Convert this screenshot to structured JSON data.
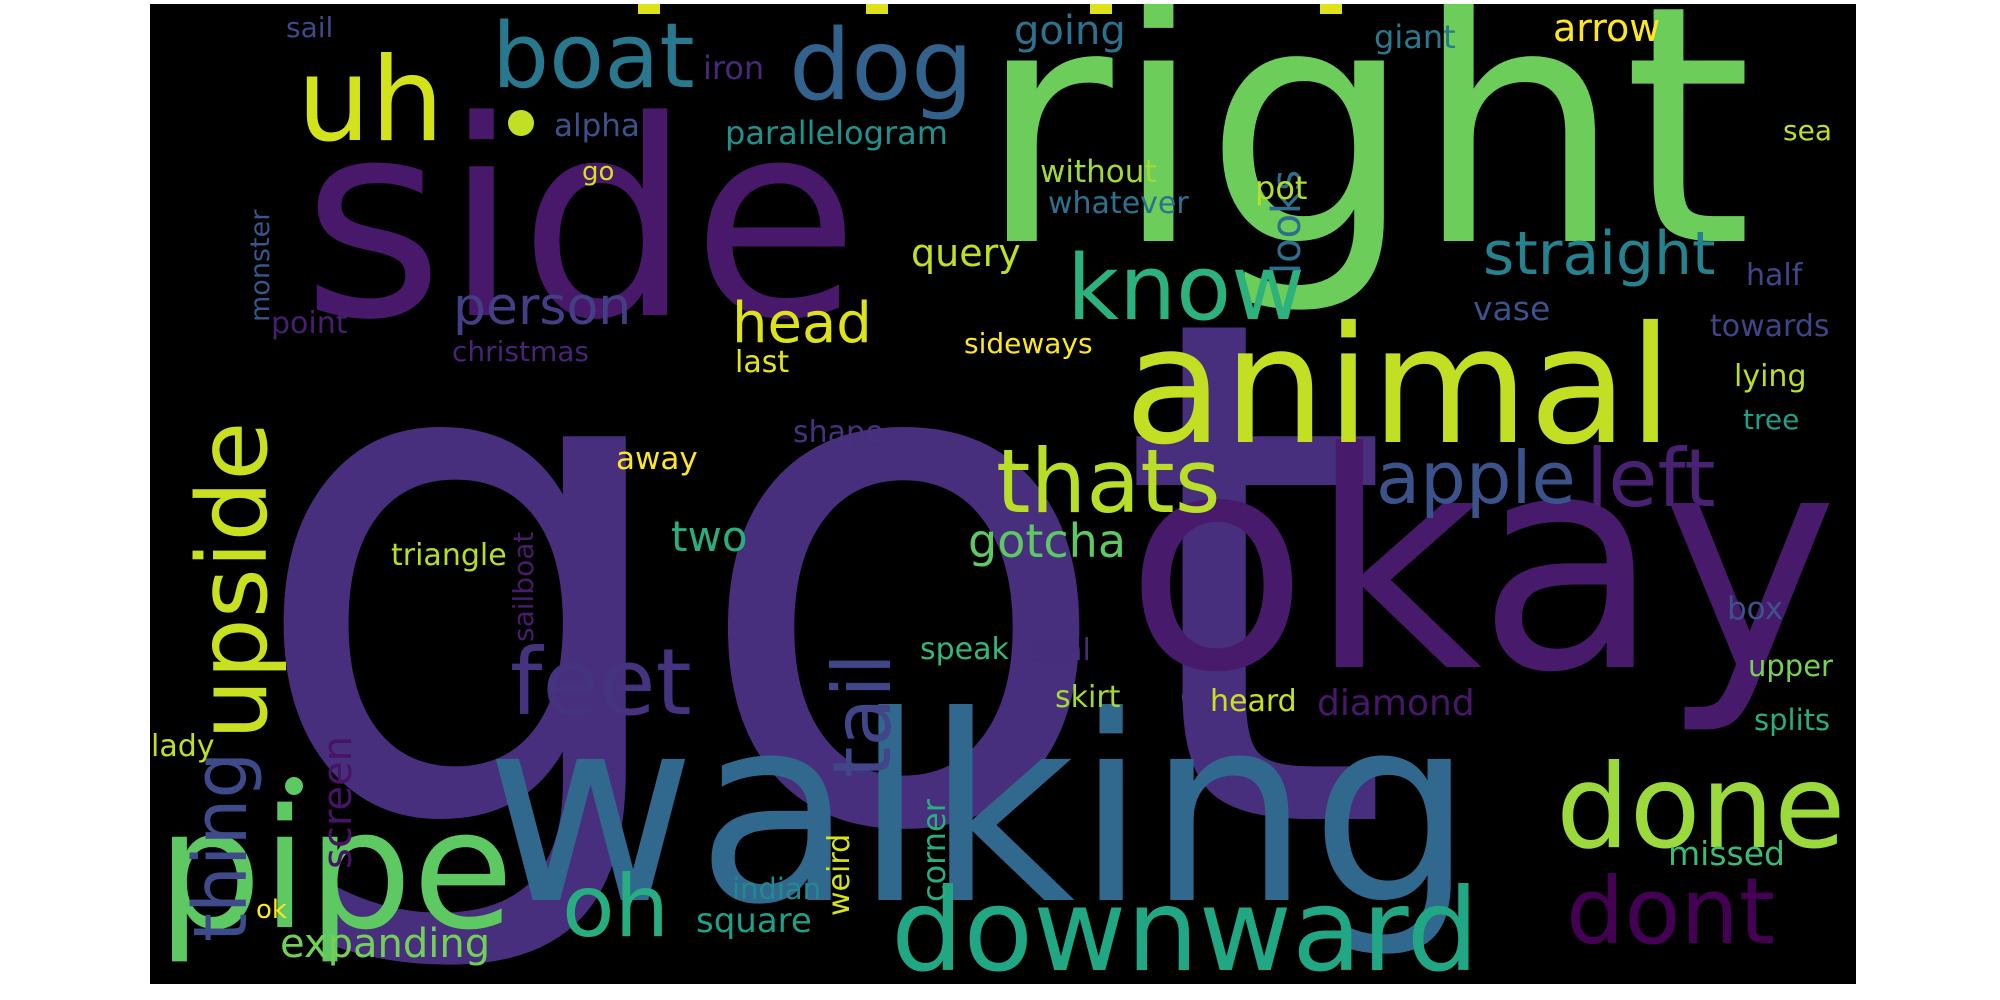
{
  "colors": {
    "background": "#000000",
    "palette": [
      "#440154",
      "#472f7d",
      "#3b528b",
      "#2c728e",
      "#21918c",
      "#28ae80",
      "#5ec962",
      "#addc30",
      "#fde725"
    ]
  },
  "words": [
    {
      "text": "got",
      "color": "#472f7d"
    },
    {
      "text": "right",
      "color": "#6ccd5a"
    },
    {
      "text": "side",
      "color": "#48186a"
    },
    {
      "text": "okay",
      "color": "#481a6c"
    },
    {
      "text": "walking",
      "color": "#31688e"
    },
    {
      "text": "animal",
      "color": "#c2df23"
    },
    {
      "text": "pipe",
      "color": "#5ec962"
    },
    {
      "text": "downward",
      "color": "#22a785"
    },
    {
      "text": "done",
      "color": "#9bd93c"
    },
    {
      "text": "upside",
      "color": "#c8e020"
    },
    {
      "text": "uh",
      "color": "#d2e21b"
    },
    {
      "text": "boat",
      "color": "#2a788e"
    },
    {
      "text": "dog",
      "color": "#33638d"
    },
    {
      "text": "know",
      "color": "#2db27d"
    },
    {
      "text": "thats",
      "color": "#b8de29"
    },
    {
      "text": "feet",
      "color": "#46337f"
    },
    {
      "text": "thing",
      "color": "#3e4a89"
    },
    {
      "text": "tail",
      "color": "#404688"
    },
    {
      "text": "apple",
      "color": "#3b528b"
    },
    {
      "text": "left",
      "color": "#482173"
    },
    {
      "text": "oh",
      "color": "#27ad81"
    },
    {
      "text": "dont",
      "color": "#440154"
    },
    {
      "text": "straight",
      "color": "#26828e"
    },
    {
      "text": "person",
      "color": "#433e85"
    },
    {
      "text": "head",
      "color": "#dde318"
    },
    {
      "text": "looks",
      "color": "#2e6e8e"
    },
    {
      "text": "gotcha",
      "color": "#5ec962"
    },
    {
      "text": "two",
      "color": "#28ae80"
    },
    {
      "text": "query",
      "color": "#c2df23"
    },
    {
      "text": "parallelogram",
      "color": "#21918c"
    },
    {
      "text": "alpha",
      "color": "#3b528b"
    },
    {
      "text": "going",
      "color": "#2c728e"
    },
    {
      "text": "arrow",
      "color": "#fde725"
    },
    {
      "text": "giant",
      "color": "#2a788e"
    },
    {
      "text": "iron",
      "color": "#482878"
    },
    {
      "text": "sail",
      "color": "#3e4a89"
    },
    {
      "text": "monster",
      "color": "#39568c"
    },
    {
      "text": "go",
      "color": "#d2e21b"
    },
    {
      "text": "sea",
      "color": "#bddf26"
    },
    {
      "text": "without",
      "color": "#a0da39"
    },
    {
      "text": "whatever",
      "color": "#2c728e"
    },
    {
      "text": "pot",
      "color": "#b5de2b"
    },
    {
      "text": "half",
      "color": "#404688"
    },
    {
      "text": "vase",
      "color": "#3b528b"
    },
    {
      "text": "towards",
      "color": "#414487"
    },
    {
      "text": "point",
      "color": "#481f70"
    },
    {
      "text": "christmas",
      "color": "#482475"
    },
    {
      "text": "sideways",
      "color": "#fde725"
    },
    {
      "text": "last",
      "color": "#e5e419"
    },
    {
      "text": "lying",
      "color": "#b8de29"
    },
    {
      "text": "tree",
      "color": "#1f9e89"
    },
    {
      "text": "shape",
      "color": "#46327e"
    },
    {
      "text": "sailboat",
      "color": "#481b6d"
    },
    {
      "text": "away",
      "color": "#fde725"
    },
    {
      "text": "triangle",
      "color": "#b5de2b"
    },
    {
      "text": "box",
      "color": "#3b528b"
    },
    {
      "text": "speak",
      "color": "#35b779"
    },
    {
      "text": "seal",
      "color": "#472d7b"
    },
    {
      "text": "upper",
      "color": "#7ad151"
    },
    {
      "text": "corner",
      "color": "#29af7f"
    },
    {
      "text": "skirt",
      "color": "#a0da39"
    },
    {
      "text": "heard",
      "color": "#c8e020"
    },
    {
      "text": "diamond",
      "color": "#481769"
    },
    {
      "text": "splits",
      "color": "#27ad81"
    },
    {
      "text": "weird",
      "color": "#d8e219"
    },
    {
      "text": "lady",
      "color": "#c2df23"
    },
    {
      "text": "screen",
      "color": "#471365"
    },
    {
      "text": "missed",
      "color": "#3bbb75"
    },
    {
      "text": "indian",
      "color": "#23898e"
    },
    {
      "text": "ok",
      "color": "#fde725"
    },
    {
      "text": "square",
      "color": "#1fa088"
    },
    {
      "text": "expanding",
      "color": "#73d056"
    }
  ]
}
